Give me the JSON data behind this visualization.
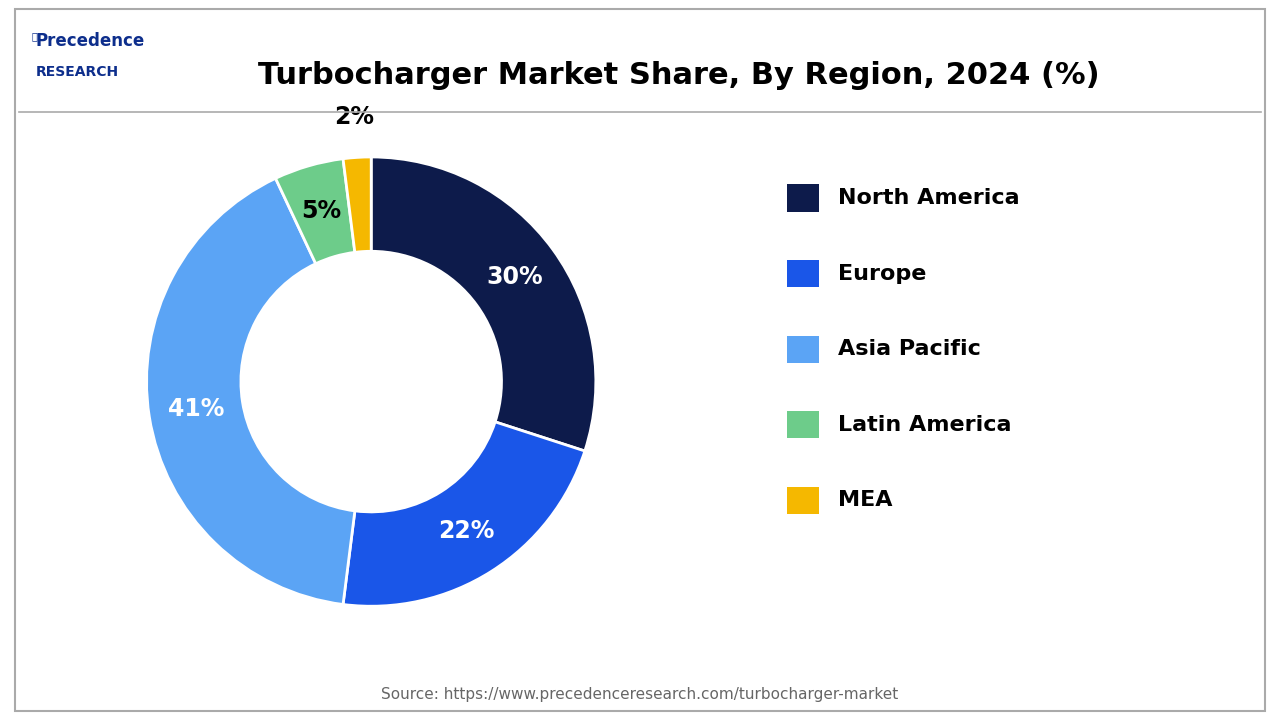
{
  "title": "Turbocharger Market Share, By Region, 2024 (%)",
  "source_text": "Source: https://www.precedenceresearch.com/turbocharger-market",
  "segments": [
    {
      "label": "North America",
      "value": 30,
      "color": "#0d1b4b",
      "text_color": "white"
    },
    {
      "label": "Europe",
      "value": 22,
      "color": "#1a56e8",
      "text_color": "white"
    },
    {
      "label": "Asia Pacific",
      "value": 41,
      "color": "#5ba4f5",
      "text_color": "white"
    },
    {
      "label": "Latin America",
      "value": 5,
      "color": "#6dcc8a",
      "text_color": "black"
    },
    {
      "label": "MEA",
      "value": 2,
      "color": "#f5b800",
      "text_color": "black"
    }
  ],
  "startangle": 90,
  "donut_width": 0.42,
  "background_color": "#ffffff",
  "title_fontsize": 22,
  "legend_fontsize": 16,
  "label_fontsize": 17,
  "border_color": "#aaaaaa",
  "logo_color": "#0d2e8c",
  "source_color": "#666666"
}
